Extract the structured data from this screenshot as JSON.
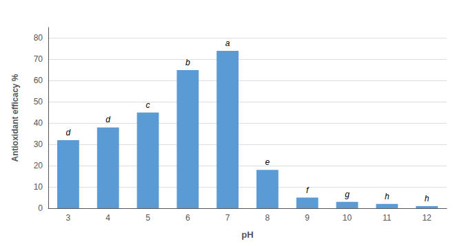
{
  "chart_data": {
    "type": "bar",
    "categories": [
      "3",
      "4",
      "5",
      "6",
      "7",
      "8",
      "9",
      "10",
      "11",
      "12"
    ],
    "values": [
      32,
      38,
      45,
      65,
      74,
      18,
      5,
      3,
      2,
      1
    ],
    "annotations": [
      "d",
      "d",
      "c",
      "b",
      "a",
      "e",
      "f",
      "g",
      "h",
      "h"
    ],
    "color": "#5B9BD5",
    "xlabel": "pH",
    "ylabel": "Antioxidant efficacy %",
    "ylim": [
      0,
      85
    ],
    "yticks": [
      0,
      10,
      20,
      30,
      40,
      50,
      60,
      70,
      80
    ],
    "grid": true
  }
}
